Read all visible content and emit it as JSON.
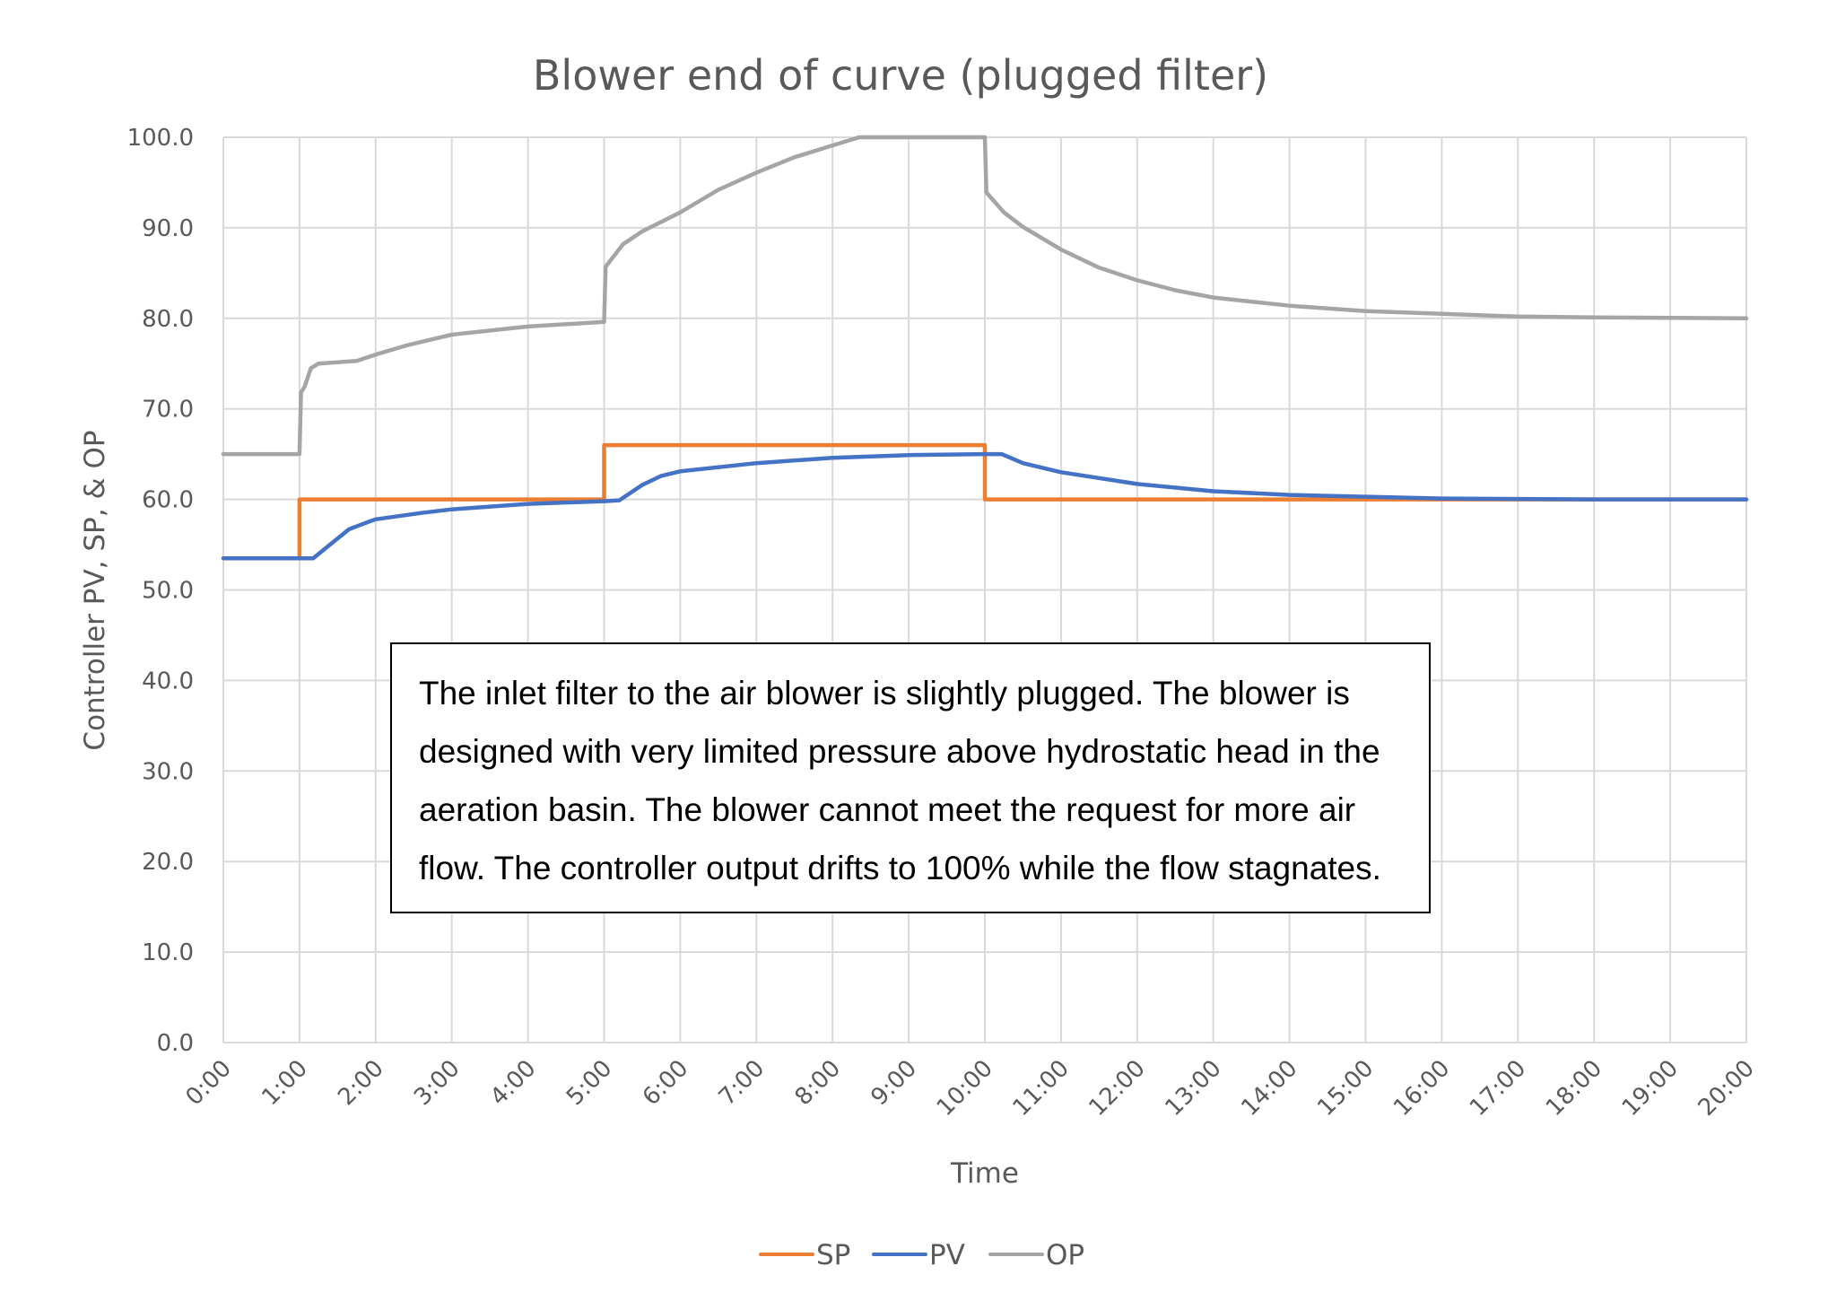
{
  "chart_data": {
    "type": "line",
    "title": "Blower end of curve (plugged filter)",
    "xlabel": "Time",
    "ylabel": "Controller PV, SP, & OP",
    "ylim": [
      0,
      100
    ],
    "xlim": [
      "0:00",
      "20:00"
    ],
    "x_unit": "minutes",
    "grid": true,
    "legend_position": "bottom",
    "y_ticks": [
      "0.0",
      "10.0",
      "20.0",
      "30.0",
      "40.0",
      "50.0",
      "60.0",
      "70.0",
      "80.0",
      "90.0",
      "100.0"
    ],
    "x_ticks": [
      "0:00",
      "1:00",
      "2:00",
      "3:00",
      "4:00",
      "5:00",
      "6:00",
      "7:00",
      "8:00",
      "9:00",
      "10:00",
      "11:00",
      "12:00",
      "13:00",
      "14:00",
      "15:00",
      "16:00",
      "17:00",
      "18:00",
      "19:00",
      "20:00"
    ],
    "series": [
      {
        "name": "SP",
        "color": "#ED7D31",
        "points": [
          [
            0,
            53.5
          ],
          [
            1,
            53.5
          ],
          [
            1,
            60
          ],
          [
            5,
            60
          ],
          [
            5,
            66
          ],
          [
            10,
            66
          ],
          [
            10,
            60
          ],
          [
            20,
            60
          ]
        ]
      },
      {
        "name": "PV",
        "color": "#4472C4",
        "points": [
          [
            0,
            53.5
          ],
          [
            1.18,
            53.5
          ],
          [
            1.4,
            55.0
          ],
          [
            1.65,
            56.7
          ],
          [
            1.9,
            57.5
          ],
          [
            2,
            57.8
          ],
          [
            2.6,
            58.5
          ],
          [
            3,
            58.9
          ],
          [
            4,
            59.5
          ],
          [
            5,
            59.8
          ],
          [
            5.2,
            59.9
          ],
          [
            5.5,
            61.6
          ],
          [
            5.75,
            62.6
          ],
          [
            6,
            63.1
          ],
          [
            7,
            64.0
          ],
          [
            8,
            64.6
          ],
          [
            9,
            64.9
          ],
          [
            10,
            65.0
          ],
          [
            10.22,
            65.0
          ],
          [
            10.5,
            64.0
          ],
          [
            11,
            63.0
          ],
          [
            12,
            61.7
          ],
          [
            13,
            60.9
          ],
          [
            14,
            60.5
          ],
          [
            15,
            60.3
          ],
          [
            16,
            60.1
          ],
          [
            17,
            60.05
          ],
          [
            18,
            60.0
          ],
          [
            20,
            60.0
          ]
        ]
      },
      {
        "name": "OP",
        "color": "#A5A5A5",
        "points": [
          [
            0,
            65.0
          ],
          [
            1,
            65.0
          ],
          [
            1.02,
            71.8
          ],
          [
            1.07,
            72.5
          ],
          [
            1.15,
            74.5
          ],
          [
            1.25,
            75.0
          ],
          [
            1.75,
            75.3
          ],
          [
            2,
            76.0
          ],
          [
            2.4,
            77.0
          ],
          [
            3,
            78.2
          ],
          [
            4,
            79.1
          ],
          [
            5,
            79.6
          ],
          [
            5.02,
            85.7
          ],
          [
            5.25,
            88.2
          ],
          [
            5.5,
            89.6
          ],
          [
            6,
            91.7
          ],
          [
            6.5,
            94.2
          ],
          [
            7,
            96.1
          ],
          [
            7.5,
            97.8
          ],
          [
            8,
            99.1
          ],
          [
            8.35,
            100.0
          ],
          [
            10,
            100.0
          ],
          [
            10.02,
            93.9
          ],
          [
            10.25,
            91.7
          ],
          [
            10.5,
            90.1
          ],
          [
            11,
            87.6
          ],
          [
            11.5,
            85.6
          ],
          [
            12,
            84.2
          ],
          [
            12.5,
            83.1
          ],
          [
            13,
            82.3
          ],
          [
            14,
            81.4
          ],
          [
            15,
            80.8
          ],
          [
            16,
            80.5
          ],
          [
            17,
            80.2
          ],
          [
            18,
            80.1
          ],
          [
            20,
            80.0
          ]
        ]
      }
    ],
    "annotations": [
      {
        "type": "textbox",
        "lines": [
          "The inlet filter to the air blower is slightly plugged.  The blower is",
          "designed with very limited pressure above hydrostatic head in the",
          "aeration basin.  The blower cannot meet the request for more air",
          "flow.  The controller output drifts to 100% while the flow stagnates."
        ]
      }
    ]
  },
  "legend": {
    "items": [
      {
        "label": "SP",
        "color": "#ED7D31"
      },
      {
        "label": "PV",
        "color": "#4472C4"
      },
      {
        "label": "OP",
        "color": "#A5A5A5"
      }
    ]
  },
  "colors": {
    "grid": "#D9D9D9",
    "text": "#595959",
    "background": "#FFFFFF"
  }
}
